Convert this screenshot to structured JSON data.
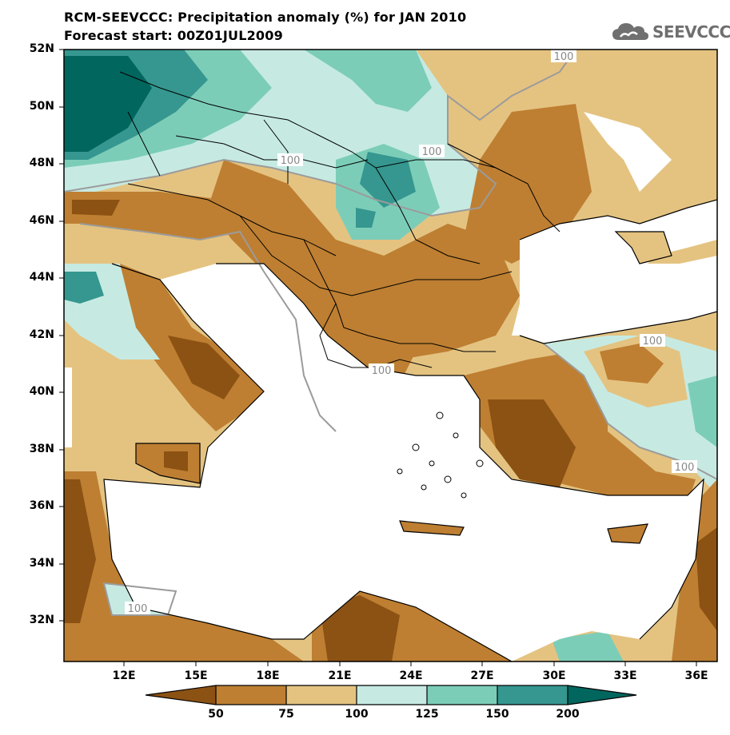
{
  "header": {
    "title_line1": "RCM-SEEVCCC: Precipitation anomaly (%) for JAN 2010",
    "title_line2": "Forecast start: 00Z01JUL2009"
  },
  "logo": {
    "text": "SEEVCCC",
    "icon": "cloud-icon"
  },
  "map": {
    "lat_labels": [
      "52N",
      "50N",
      "48N",
      "46N",
      "44N",
      "42N",
      "40N",
      "38N",
      "36N",
      "34N",
      "32N"
    ],
    "lon_labels": [
      "12E",
      "15E",
      "18E",
      "21E",
      "24E",
      "27E",
      "30E",
      "33E",
      "36E"
    ],
    "contour_labels": [
      "100",
      "100",
      "100",
      "100",
      "100",
      "100",
      "100"
    ]
  },
  "colorbar": {
    "tick_labels": [
      "50",
      "75",
      "100",
      "125",
      "150",
      "200"
    ],
    "colors": [
      "#8c5213",
      "#be7f32",
      "#e4c381",
      "#c6eae2",
      "#7ccdb8",
      "#35978f",
      "#01665e"
    ]
  },
  "colors": {
    "land_unmasked": "#ffffff",
    "border": "#000000",
    "contour": "#9b9b9b"
  }
}
